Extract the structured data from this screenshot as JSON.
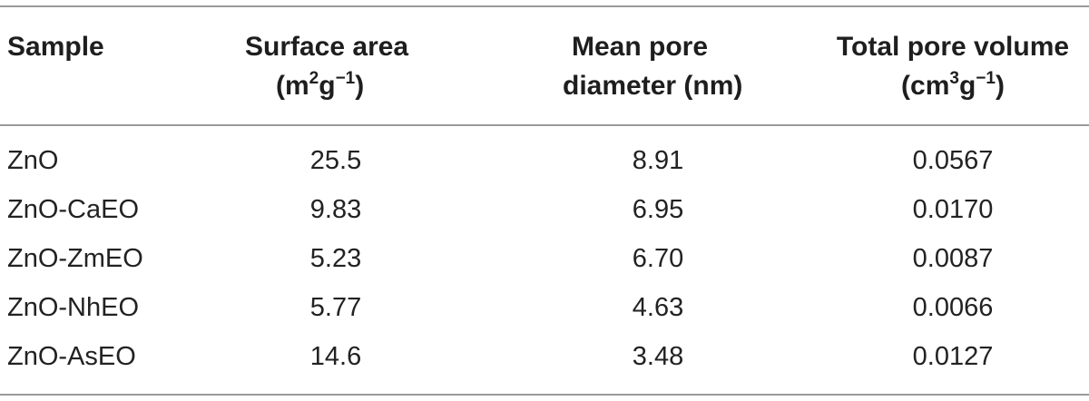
{
  "table": {
    "headers": {
      "sample": "Sample",
      "surface_line1": "Surface area",
      "surface_unit_pre": "(m",
      "surface_sup1": "2",
      "surface_unit_mid": "g",
      "surface_sup2": "−1",
      "surface_unit_post": ")",
      "pore_line1": "Mean pore",
      "pore_line2": "diameter (nm)",
      "volume_line1": "Total pore volume",
      "volume_unit_pre": "(cm",
      "volume_sup1": "3",
      "volume_unit_mid": "g",
      "volume_sup2": "−1",
      "volume_unit_post": ")"
    },
    "rows": [
      {
        "sample": "ZnO",
        "surface_area": "25.5",
        "mean_pore_diameter": "8.91",
        "total_pore_volume": "0.0567"
      },
      {
        "sample": "ZnO-CaEO",
        "surface_area": "9.83",
        "mean_pore_diameter": "6.95",
        "total_pore_volume": "0.0170"
      },
      {
        "sample": "ZnO-ZmEO",
        "surface_area": "5.23",
        "mean_pore_diameter": "6.70",
        "total_pore_volume": "0.0087"
      },
      {
        "sample": "ZnO-NhEO",
        "surface_area": "5.77",
        "mean_pore_diameter": "4.63",
        "total_pore_volume": "0.0066"
      },
      {
        "sample": "ZnO-AsEO",
        "surface_area": "14.6",
        "mean_pore_diameter": "3.48",
        "total_pore_volume": "0.0127"
      }
    ]
  }
}
